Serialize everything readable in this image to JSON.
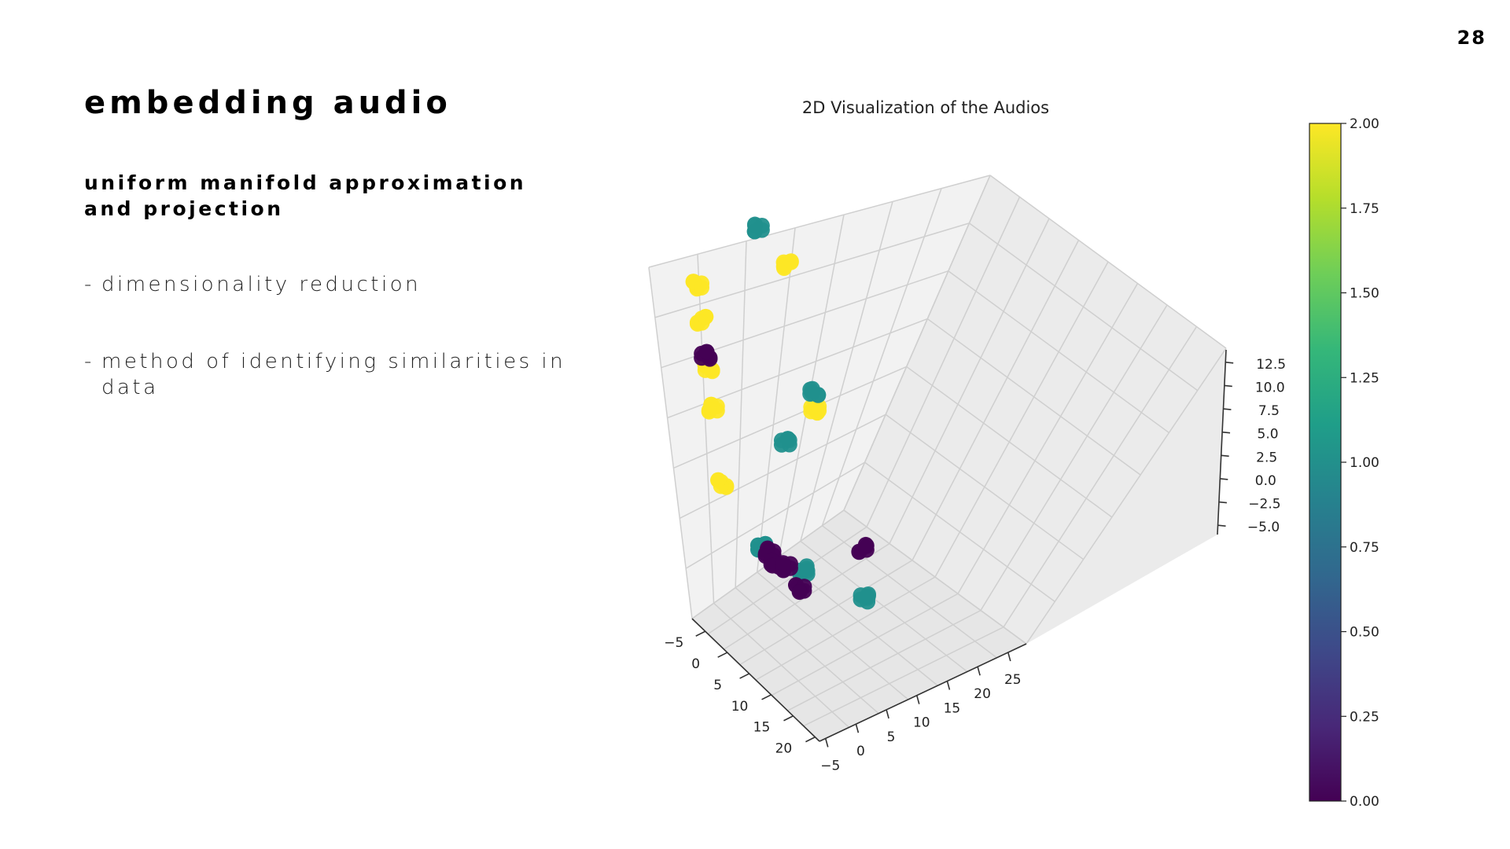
{
  "page": {
    "number": "28"
  },
  "slide": {
    "title": "embedding audio",
    "subtitle_line1": "uniform manifold approximation",
    "subtitle_line2": "and projection",
    "bullets": [
      {
        "dash": "-",
        "text": "dimensionality reduction"
      },
      {
        "dash": "-",
        "text": "method of identifying similarities in data"
      }
    ]
  },
  "chart_data": {
    "type": "scatter",
    "title": "2D Visualization of the Audios",
    "x_ticks": [
      "−5",
      "0",
      "5",
      "10",
      "15",
      "20"
    ],
    "y_ticks": [
      "−5",
      "0",
      "5",
      "10",
      "15",
      "20",
      "25"
    ],
    "z_ticks": [
      "−5.0",
      "−2.5",
      "0.0",
      "2.5",
      "5.0",
      "7.5",
      "10.0",
      "12.5"
    ],
    "xlim": [
      -8,
      21
    ],
    "ylim": [
      -6,
      28
    ],
    "zlim": [
      -6,
      14
    ],
    "colorbar": {
      "ticks": [
        "0.00",
        "0.25",
        "0.50",
        "0.75",
        "1.00",
        "1.25",
        "1.50",
        "1.75",
        "2.00"
      ],
      "range": [
        0,
        2
      ],
      "colormap": "viridis",
      "colors": [
        "#440154",
        "#482878",
        "#3e4989",
        "#31688e",
        "#26828e",
        "#1f9e89",
        "#35b779",
        "#6ece58",
        "#b5de2b",
        "#fde725"
      ]
    },
    "grid": true,
    "clusters": [
      {
        "label": 2,
        "color": "#fde725",
        "x": -6,
        "y": 0,
        "z": 12.5
      },
      {
        "label": 2,
        "color": "#fde725",
        "x": -6,
        "y": 0,
        "z": 10.5
      },
      {
        "label": 2,
        "color": "#fde725",
        "x": -6,
        "y": 0,
        "z": 7.8
      },
      {
        "label": 2,
        "color": "#fde725",
        "x": -6,
        "y": 0,
        "z": 5.5
      },
      {
        "label": 2,
        "color": "#fde725",
        "x": -6,
        "y": 0,
        "z": 1.2
      },
      {
        "label": 0,
        "color": "#440154",
        "x": -6,
        "y": 0,
        "z": 8.5
      },
      {
        "label": 2,
        "color": "#fde725",
        "x": -4,
        "y": 13,
        "z": 12
      },
      {
        "label": 2,
        "color": "#fde725",
        "x": -1,
        "y": 13,
        "z": 4.5
      },
      {
        "label": 1,
        "color": "#21908d",
        "x": -1,
        "y": 13,
        "z": 5.5
      },
      {
        "label": 1,
        "color": "#21908d",
        "x": -12,
        "y": 14,
        "z": 12
      },
      {
        "label": 1,
        "color": "#21908d",
        "x": 2,
        "y": 6,
        "z": 4.5
      },
      {
        "label": 1,
        "color": "#21908d",
        "x": 2,
        "y": 0,
        "z": -0.5
      },
      {
        "label": 1,
        "color": "#21908d",
        "x": 6,
        "y": 4,
        "z": -1.5
      },
      {
        "label": 1,
        "color": "#21908d",
        "x": 15,
        "y": 7.5,
        "z": -1.5
      },
      {
        "label": 0,
        "color": "#440154",
        "x": 4,
        "y": 0,
        "z": -0.3
      },
      {
        "label": 0,
        "color": "#440154",
        "x": 5,
        "y": 0,
        "z": -0.7
      },
      {
        "label": 0,
        "color": "#440154",
        "x": 7,
        "y": 0.5,
        "z": -0.5
      },
      {
        "label": 0,
        "color": "#440154",
        "x": 10,
        "y": 0.5,
        "z": -1
      },
      {
        "label": 0,
        "color": "#440154",
        "x": 7,
        "y": 13,
        "z": -1.5
      }
    ]
  }
}
